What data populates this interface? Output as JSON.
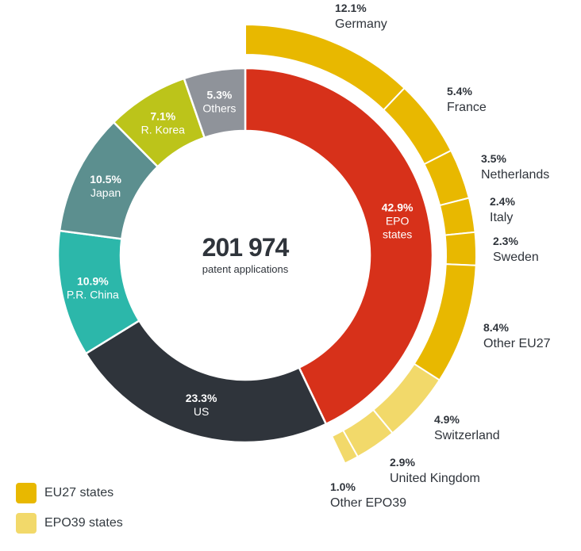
{
  "chart_data": {
    "type": "pie",
    "center": {
      "value": "201 974",
      "caption": "patent applications"
    },
    "inner_ring": [
      {
        "label": "EPO states",
        "pct_label": "42.9%",
        "value": 42.9,
        "color": "#d7311a"
      },
      {
        "label": "US",
        "pct_label": "23.3%",
        "value": 23.3,
        "color": "#2f343b"
      },
      {
        "label": "P.R. China",
        "pct_label": "10.9%",
        "value": 10.9,
        "color": "#2cb7aa"
      },
      {
        "label": "Japan",
        "pct_label": "10.5%",
        "value": 10.5,
        "color": "#5c8f8f"
      },
      {
        "label": "R. Korea",
        "pct_label": "7.1%",
        "value": 7.1,
        "color": "#bcc41a"
      },
      {
        "label": "Others",
        "pct_label": "5.3%",
        "value": 5.3,
        "color": "#8f939a"
      }
    ],
    "outer_ring": [
      {
        "label": "Germany",
        "pct_label": "12.1%",
        "value": 12.1,
        "group": "EU27 states"
      },
      {
        "label": "France",
        "pct_label": "5.4%",
        "value": 5.4,
        "group": "EU27 states"
      },
      {
        "label": "Netherlands",
        "pct_label": "3.5%",
        "value": 3.5,
        "group": "EU27 states"
      },
      {
        "label": "Italy",
        "pct_label": "2.4%",
        "value": 2.4,
        "group": "EU27 states"
      },
      {
        "label": "Sweden",
        "pct_label": "2.3%",
        "value": 2.3,
        "group": "EU27 states"
      },
      {
        "label": "Other EU27",
        "pct_label": "8.4%",
        "value": 8.4,
        "group": "EU27 states"
      },
      {
        "label": "Switzerland",
        "pct_label": "4.9%",
        "value": 4.9,
        "group": "EPO39 states"
      },
      {
        "label": "United Kingdom",
        "pct_label": "2.9%",
        "value": 2.9,
        "group": "EPO39 states"
      },
      {
        "label": "Other EPO39",
        "pct_label": "1.0%",
        "value": 1.0,
        "group": "EPO39 states"
      }
    ],
    "legend": [
      {
        "label": "EU27 states",
        "color": "#e8b800"
      },
      {
        "label": "EPO39 states",
        "color": "#f2d96a"
      }
    ]
  }
}
